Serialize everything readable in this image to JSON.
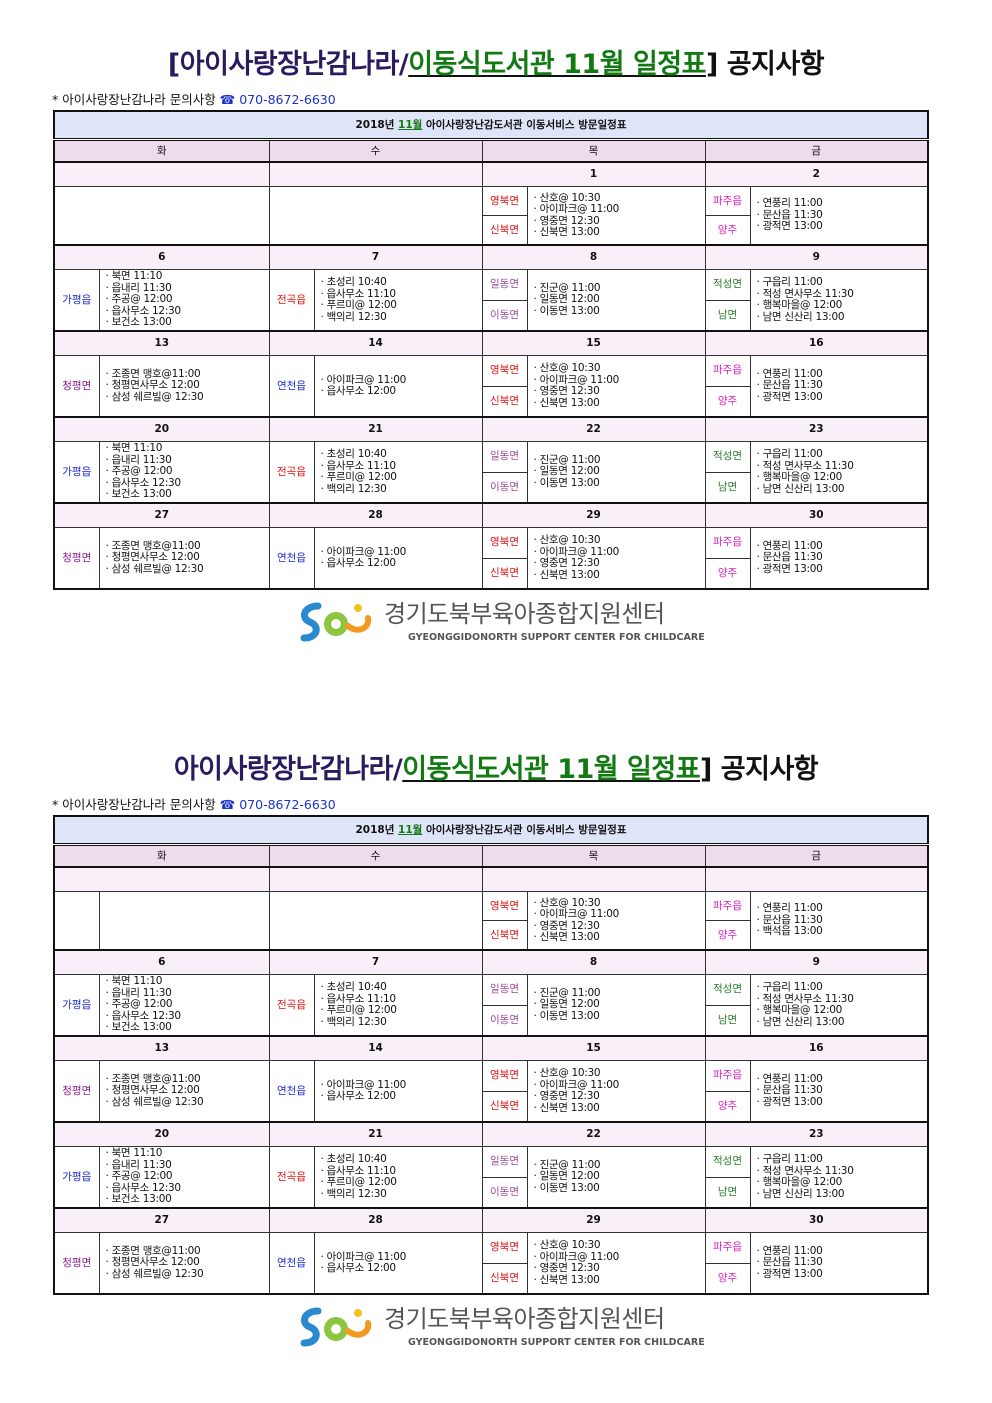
{
  "region_colors": {
    "가평읍": "#1a2acc",
    "전곡읍": "#e01010",
    "일동면": "#9b4a9b",
    "이동면": "#9b4a9b",
    "적성면": "#2a7a2a",
    "남면": "#2a7a2a",
    "영북면": "#e01010",
    "신북면": "#e01010",
    "파주읍": "#e020c0",
    "양주": "#e020c0",
    "청평면": "#8b1a8b",
    "연천읍": "#1a2acc"
  },
  "logo": {
    "ko": "경기도북부육아종합지원센터",
    "en": "GYEONGGIDONORTH SUPPORT CENTER FOR CHILDCARE"
  },
  "sheets": [
    {
      "title": {
        "prefix": "[아이사랑장난감나라/",
        "green": "이동식도서관 11월 일정표",
        "bracket": "]",
        "suffix": " 공지사항"
      },
      "contact": {
        "label": "* 아이사랑장난감나라 문의사항 ",
        "phone": "☎ 070-8672-6630"
      },
      "table_title": {
        "pre": "2018년 ",
        "month": "11월",
        "post": " 아이사랑장난감도서관 이동서비스 방문일정표"
      },
      "day_headers": [
        "화",
        "수",
        "목",
        "금"
      ],
      "weeks": [
        {
          "days": [
            {
              "date": "",
              "labels": [],
              "items": [],
              "split": false
            },
            {
              "date": "",
              "labels": [],
              "items": []
            },
            {
              "date": "1",
              "labels": [
                "영북면",
                "신북면"
              ],
              "items": [
                "· 산호@ 10:30",
                "· 아이파크@ 11:00",
                "· 영중면 12:30",
                "· 신북면 13:00"
              ]
            },
            {
              "date": "2",
              "labels": [
                "파주읍",
                "양주"
              ],
              "items": [
                "· 연풍리 11:00",
                "· 문산읍 11:30",
                "· 광적면 13:00"
              ]
            }
          ]
        },
        {
          "days": [
            {
              "date": "6",
              "labels": [
                "가평읍"
              ],
              "items": [
                "· 북면 11:10",
                "· 읍내리 11:30",
                "· 주공@ 12:00",
                "· 읍사무소 12:30",
                "· 보건소 13:00"
              ]
            },
            {
              "date": "7",
              "labels": [
                "전곡읍"
              ],
              "items": [
                "· 초성리 10:40",
                "· 읍사무소 11:10",
                "· 푸르미@ 12:00",
                "· 백의리 12:30"
              ]
            },
            {
              "date": "8",
              "labels": [
                "일동면",
                "이동면"
              ],
              "items": [
                "· 진군@ 11:00",
                "· 일동면 12:00",
                "· 이동면 13:00"
              ]
            },
            {
              "date": "9",
              "labels": [
                "적성면",
                "남면"
              ],
              "items": [
                "· 구읍리 11:00",
                "· 적성 면사무소 11:30",
                "· 행복마을@ 12:00",
                "· 남면 신산리 13:00"
              ]
            }
          ]
        },
        {
          "days": [
            {
              "date": "13",
              "labels": [
                "청평면"
              ],
              "items": [
                "· 조종면 맹호@11:00",
                "· 청평면사무소 12:00",
                "· 삼성 쉐르빌@ 12:30"
              ]
            },
            {
              "date": "14",
              "labels": [
                "연천읍"
              ],
              "items": [
                "· 아이파크@ 11:00",
                "· 읍사무소 12:00"
              ]
            },
            {
              "date": "15",
              "labels": [
                "영북면",
                "신북면"
              ],
              "items": [
                "· 산호@ 10:30",
                "· 아이파크@ 11:00",
                "· 영중면 12:30",
                "· 신북면 13:00"
              ]
            },
            {
              "date": "16",
              "labels": [
                "파주읍",
                "양주"
              ],
              "items": [
                "· 연풍리 11:00",
                "· 문산읍 11:30",
                "· 광적면 13:00"
              ]
            }
          ]
        },
        {
          "days": [
            {
              "date": "20",
              "labels": [
                "가평읍"
              ],
              "items": [
                "· 북면 11:10",
                "· 읍내리 11:30",
                "· 주공@ 12:00",
                "· 읍사무소 12:30",
                "· 보건소 13:00"
              ]
            },
            {
              "date": "21",
              "labels": [
                "전곡읍"
              ],
              "items": [
                "· 초성리 10:40",
                "· 읍사무소 11:10",
                "· 푸르미@ 12:00",
                "· 백의리 12:30"
              ]
            },
            {
              "date": "22",
              "labels": [
                "일동면",
                "이동면"
              ],
              "items": [
                "· 진군@ 11:00",
                "· 일동면 12:00",
                "· 이동면 13:00"
              ]
            },
            {
              "date": "23",
              "labels": [
                "적성면",
                "남면"
              ],
              "items": [
                "· 구읍리 11:00",
                "· 적성 면사무소 11:30",
                "· 행복마을@ 12:00",
                "· 남면 신산리 13:00"
              ]
            }
          ]
        },
        {
          "days": [
            {
              "date": "27",
              "labels": [
                "청평면"
              ],
              "items": [
                "· 조종면 맹호@11:00",
                "· 청평면사무소 12:00",
                "· 삼성 쉐르빌@ 12:30"
              ]
            },
            {
              "date": "28",
              "labels": [
                "연천읍"
              ],
              "items": [
                "· 아이파크@ 11:00",
                "· 읍사무소 12:00"
              ]
            },
            {
              "date": "29",
              "labels": [
                "영북면",
                "신북면"
              ],
              "items": [
                "· 산호@ 10:30",
                "· 아이파크@ 11:00",
                "· 영중면 12:30",
                "· 신북면 13:00"
              ]
            },
            {
              "date": "30",
              "labels": [
                "파주읍",
                "양주"
              ],
              "items": [
                "· 연풍리 11:00",
                "· 문산읍 11:30",
                "· 광적면 13:00"
              ]
            }
          ]
        }
      ]
    },
    {
      "title": {
        "prefix": "아이사랑장난감나라/",
        "green": "이동식도서관 11월 일정표",
        "bracket": "]",
        "suffix": " 공지사항"
      },
      "contact": {
        "label": "* 아이사랑장난감나라 문의사항 ",
        "phone": "☎ 070-8672-6630"
      },
      "table_title": {
        "pre": "2018년 ",
        "month": "11월",
        "post": " 아이사랑장난감도서관 이동서비스 방문일정표"
      },
      "day_headers": [
        "화",
        "수",
        "목",
        "금"
      ],
      "weeks": [
        {
          "days": [
            {
              "date": "",
              "labels": [],
              "items": [],
              "split": true
            },
            {
              "date": "",
              "labels": [],
              "items": []
            },
            {
              "date": "",
              "labels": [
                "영북면",
                "신북면"
              ],
              "items": [
                "· 산호@ 10:30",
                "· 아이파크@ 11:00",
                "· 영중면 12:30",
                "· 신북면 13:00"
              ]
            },
            {
              "date": "",
              "labels": [
                "파주읍",
                "양주"
              ],
              "items": [
                "· 연풍리 11:00",
                "· 문산읍 11:30",
                "· 백석읍 13:00"
              ]
            }
          ]
        },
        {
          "days": [
            {
              "date": "6",
              "labels": [
                "가평읍"
              ],
              "items": [
                "· 북면 11:10",
                "· 읍내리 11:30",
                "· 주공@ 12:00",
                "· 읍사무소 12:30",
                "· 보건소 13:00"
              ]
            },
            {
              "date": "7",
              "labels": [
                "전곡읍"
              ],
              "items": [
                "· 초성리 10:40",
                "· 읍사무소 11:10",
                "· 푸르미@ 12:00",
                "· 백의리 12:30"
              ]
            },
            {
              "date": "8",
              "labels": [
                "일동면",
                "이동면"
              ],
              "items": [
                "· 진군@ 11:00",
                "· 일동면 12:00",
                "· 이동면 13:00"
              ]
            },
            {
              "date": "9",
              "labels": [
                "적성면",
                "남면"
              ],
              "items": [
                "· 구읍리 11:00",
                "· 적성 면사무소 11:30",
                "· 행복마을@ 12:00",
                "· 남면 신산리 13:00"
              ]
            }
          ]
        },
        {
          "days": [
            {
              "date": "13",
              "labels": [
                "청평면"
              ],
              "items": [
                "· 조종면 맹호@11:00",
                "· 청평면사무소 12:00",
                "· 삼성 쉐르빌@ 12:30"
              ]
            },
            {
              "date": "14",
              "labels": [
                "연천읍"
              ],
              "items": [
                "· 아이파크@ 11:00",
                "· 읍사무소 12:00"
              ]
            },
            {
              "date": "15",
              "labels": [
                "영북면",
                "신북면"
              ],
              "items": [
                "· 산호@ 10:30",
                "· 아이파크@ 11:00",
                "· 영중면 12:30",
                "· 신북면 13:00"
              ]
            },
            {
              "date": "16",
              "labels": [
                "파주읍",
                "양주"
              ],
              "items": [
                "· 연풍리 11:00",
                "· 문산읍 11:30",
                "· 광적면 13:00"
              ]
            }
          ]
        },
        {
          "days": [
            {
              "date": "20",
              "labels": [
                "가평읍"
              ],
              "items": [
                "· 북면 11:10",
                "· 읍내리 11:30",
                "· 주공@ 12:00",
                "· 읍사무소 12:30",
                "· 보건소 13:00"
              ]
            },
            {
              "date": "21",
              "labels": [
                "전곡읍"
              ],
              "items": [
                "· 초성리 10:40",
                "· 읍사무소 11:10",
                "· 푸르미@ 12:00",
                "· 백의리 12:30"
              ]
            },
            {
              "date": "22",
              "labels": [
                "일동면",
                "이동면"
              ],
              "items": [
                "· 진군@ 11:00",
                "· 일동면 12:00",
                "· 이동면 13:00"
              ]
            },
            {
              "date": "23",
              "labels": [
                "적성면",
                "남면"
              ],
              "items": [
                "· 구읍리 11:00",
                "· 적성 면사무소 11:30",
                "· 행복마을@ 12:00",
                "· 남면 신산리 13:00"
              ]
            }
          ]
        },
        {
          "days": [
            {
              "date": "27",
              "labels": [
                "청평면"
              ],
              "items": [
                "· 조종면 맹호@11:00",
                "· 청평면사무소 12:00",
                "· 삼성 쉐르빌@ 12:30"
              ]
            },
            {
              "date": "28",
              "labels": [
                "연천읍"
              ],
              "items": [
                "· 아이파크@ 11:00",
                "· 읍사무소 12:00"
              ]
            },
            {
              "date": "29",
              "labels": [
                "영북면",
                "신북면"
              ],
              "items": [
                "· 산호@ 10:30",
                "· 아이파크@ 11:00",
                "· 영중면 12:30",
                "· 신북면 13:00"
              ]
            },
            {
              "date": "30",
              "labels": [
                "파주읍",
                "양주"
              ],
              "items": [
                "· 연풍리 11:00",
                "· 문산읍 11:30",
                "· 광적면 13:00"
              ]
            }
          ]
        }
      ]
    }
  ]
}
